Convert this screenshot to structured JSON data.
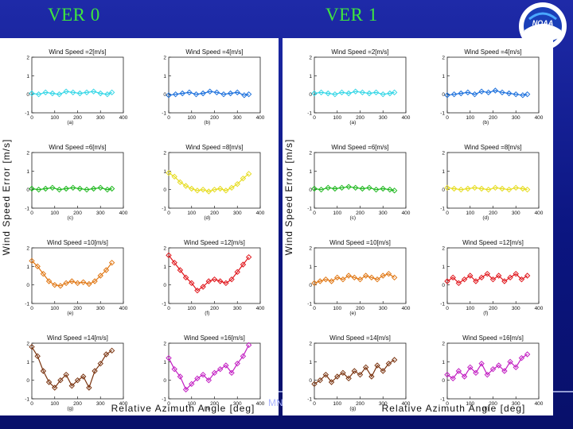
{
  "slide": {
    "title_left": "VER 0",
    "title_right": "VER 1",
    "logo_text": "NOAA",
    "footer_fragment": "MN"
  },
  "colors": {
    "background": "#0b1580",
    "title": "#3ee63e",
    "series": [
      "#33d6e6",
      "#1a6fdc",
      "#1fb81f",
      "#e6dc1e",
      "#e07612",
      "#e0151b",
      "#7a3410",
      "#c21ec2"
    ]
  },
  "chart_data": [
    {
      "type": "scatter",
      "version": "VER 0",
      "ylabel": "Wind Speed Error [m/s]",
      "xlabel": "Relative Azimuth Angle [deg]",
      "subplots": [
        {
          "title": "Wind Speed =2[m/s]",
          "letter": "(a)",
          "color": "#33d6e6",
          "xlim": [
            0,
            400
          ],
          "ylim": [
            -1,
            2
          ],
          "xticks": [
            "0",
            "100",
            "200",
            "300",
            "400"
          ],
          "yticks": [
            "-1",
            "0",
            "1",
            "2"
          ],
          "x": [
            0,
            30,
            60,
            90,
            120,
            150,
            180,
            210,
            240,
            270,
            300,
            330,
            350
          ],
          "y": [
            0.05,
            0.0,
            0.1,
            0.05,
            0.0,
            0.15,
            0.1,
            0.05,
            0.1,
            0.15,
            0.05,
            0.0,
            0.1
          ]
        },
        {
          "title": "Wind Speed =4[m/s]",
          "letter": "(b)",
          "color": "#1a6fdc",
          "xlim": [
            0,
            400
          ],
          "ylim": [
            -1,
            2
          ],
          "xticks": [
            "0",
            "100",
            "200",
            "300",
            "400"
          ],
          "yticks": [
            "-1",
            "0",
            "1",
            "2"
          ],
          "x": [
            0,
            30,
            60,
            90,
            120,
            150,
            180,
            210,
            240,
            270,
            300,
            330,
            350
          ],
          "y": [
            -0.05,
            0.0,
            0.05,
            0.1,
            0.0,
            0.05,
            0.15,
            0.1,
            0.0,
            0.05,
            0.1,
            -0.05,
            0.0
          ]
        },
        {
          "title": "Wind Speed =6[m/s]",
          "letter": "(c)",
          "color": "#1fb81f",
          "xlim": [
            0,
            400
          ],
          "ylim": [
            -1,
            2
          ],
          "xticks": [
            "0",
            "100",
            "200",
            "300",
            "400"
          ],
          "yticks": [
            "-1",
            "0",
            "1",
            "2"
          ],
          "x": [
            0,
            30,
            60,
            90,
            120,
            150,
            180,
            210,
            240,
            270,
            300,
            330,
            350
          ],
          "y": [
            0.05,
            0.0,
            0.05,
            0.1,
            0.0,
            0.05,
            0.1,
            0.05,
            0.0,
            0.05,
            0.1,
            0.0,
            0.05
          ]
        },
        {
          "title": "Wind Speed =8[m/s]",
          "letter": "(d)",
          "color": "#e6dc1e",
          "xlim": [
            0,
            400
          ],
          "ylim": [
            -1,
            2
          ],
          "xticks": [
            "0",
            "100",
            "200",
            "300",
            "400"
          ],
          "yticks": [
            "-1",
            "0",
            "1",
            "2"
          ],
          "x": [
            0,
            25,
            50,
            75,
            100,
            125,
            150,
            175,
            200,
            225,
            250,
            275,
            300,
            325,
            350
          ],
          "y": [
            0.9,
            0.7,
            0.4,
            0.2,
            0.05,
            -0.05,
            0.0,
            -0.1,
            0.0,
            0.05,
            -0.05,
            0.1,
            0.3,
            0.6,
            0.85
          ]
        },
        {
          "title": "Wind Speed =10[m/s]",
          "letter": "(e)",
          "color": "#e07612",
          "xlim": [
            0,
            400
          ],
          "ylim": [
            -1,
            2
          ],
          "xticks": [
            "0",
            "100",
            "200",
            "300",
            "400"
          ],
          "yticks": [
            "-1",
            "0",
            "1",
            "2"
          ],
          "x": [
            0,
            25,
            50,
            75,
            100,
            125,
            150,
            175,
            200,
            225,
            250,
            275,
            300,
            325,
            350
          ],
          "y": [
            1.3,
            1.0,
            0.6,
            0.2,
            0.0,
            -0.05,
            0.1,
            0.2,
            0.1,
            0.15,
            0.05,
            0.2,
            0.5,
            0.8,
            1.2
          ]
        },
        {
          "title": "Wind Speed =12[m/s]",
          "letter": "(f)",
          "color": "#e0151b",
          "xlim": [
            0,
            400
          ],
          "ylim": [
            -1,
            2
          ],
          "xticks": [
            "0",
            "100",
            "200",
            "300",
            "400"
          ],
          "yticks": [
            "-1",
            "0",
            "1",
            "2"
          ],
          "x": [
            0,
            25,
            50,
            75,
            100,
            125,
            150,
            175,
            200,
            225,
            250,
            275,
            300,
            325,
            350
          ],
          "y": [
            1.6,
            1.2,
            0.8,
            0.4,
            0.1,
            -0.3,
            -0.1,
            0.2,
            0.3,
            0.2,
            0.1,
            0.3,
            0.7,
            1.1,
            1.5
          ]
        },
        {
          "title": "Wind Speed =14[m/s]",
          "letter": "(g)",
          "color": "#7a3410",
          "xlim": [
            0,
            400
          ],
          "ylim": [
            -1,
            2
          ],
          "xticks": [
            "0",
            "100",
            "200",
            "300",
            "400"
          ],
          "yticks": [
            "-1",
            "0",
            "1",
            "2"
          ],
          "x": [
            0,
            25,
            50,
            75,
            100,
            125,
            150,
            175,
            200,
            225,
            250,
            275,
            300,
            325,
            350
          ],
          "y": [
            1.8,
            1.3,
            0.5,
            -0.1,
            -0.4,
            0.0,
            0.3,
            -0.3,
            0.0,
            0.2,
            -0.4,
            0.5,
            0.9,
            1.4,
            1.6
          ]
        },
        {
          "title": "Wind Speed =16[m/s]",
          "letter": "(h)",
          "color": "#c21ec2",
          "xlim": [
            0,
            400
          ],
          "ylim": [
            -1,
            2
          ],
          "xticks": [
            "0",
            "100",
            "200",
            "300",
            "400"
          ],
          "yticks": [
            "-1",
            "0",
            "1",
            "2"
          ],
          "x": [
            0,
            25,
            50,
            75,
            100,
            125,
            150,
            175,
            200,
            225,
            250,
            275,
            300,
            325,
            350
          ],
          "y": [
            1.2,
            0.6,
            0.2,
            -0.5,
            -0.2,
            0.1,
            0.3,
            0.0,
            0.4,
            0.6,
            0.8,
            0.4,
            0.9,
            1.3,
            1.9
          ]
        }
      ]
    },
    {
      "type": "scatter",
      "version": "VER 1",
      "ylabel": "Wind Speed Error [m/s]",
      "xlabel": "Relative Azimuth Angle [deg]",
      "subplots": [
        {
          "title": "Wind Speed =2[m/s]",
          "letter": "(a)",
          "color": "#33d6e6",
          "xlim": [
            0,
            400
          ],
          "ylim": [
            -1,
            2
          ],
          "xticks": [
            "0",
            "100",
            "200",
            "300",
            "400"
          ],
          "yticks": [
            "-1",
            "0",
            "1",
            "2"
          ],
          "x": [
            0,
            30,
            60,
            90,
            120,
            150,
            180,
            210,
            240,
            270,
            300,
            330,
            350
          ],
          "y": [
            0.05,
            0.1,
            0.05,
            0.0,
            0.1,
            0.05,
            0.15,
            0.1,
            0.05,
            0.1,
            0.0,
            0.05,
            0.1
          ]
        },
        {
          "title": "Wind Speed =4[m/s]",
          "letter": "(b)",
          "color": "#1a6fdc",
          "xlim": [
            0,
            400
          ],
          "ylim": [
            -1,
            2
          ],
          "xticks": [
            "0",
            "100",
            "200",
            "300",
            "400"
          ],
          "yticks": [
            "-1",
            "0",
            "1",
            "2"
          ],
          "x": [
            0,
            30,
            60,
            90,
            120,
            150,
            180,
            210,
            240,
            270,
            300,
            330,
            350
          ],
          "y": [
            -0.05,
            0.0,
            0.05,
            0.1,
            0.0,
            0.15,
            0.1,
            0.2,
            0.1,
            0.05,
            0.0,
            -0.05,
            0.0
          ]
        },
        {
          "title": "Wind Speed =6[m/s]",
          "letter": "(c)",
          "color": "#1fb81f",
          "xlim": [
            0,
            400
          ],
          "ylim": [
            -1,
            2
          ],
          "xticks": [
            "0",
            "100",
            "200",
            "300",
            "400"
          ],
          "yticks": [
            "-1",
            "0",
            "1",
            "2"
          ],
          "x": [
            0,
            30,
            60,
            90,
            120,
            150,
            180,
            210,
            240,
            270,
            300,
            330,
            350
          ],
          "y": [
            0.05,
            0.0,
            0.1,
            0.05,
            0.1,
            0.15,
            0.1,
            0.05,
            0.1,
            0.0,
            0.05,
            0.0,
            -0.05
          ]
        },
        {
          "title": "Wind Speed =8[m/s]",
          "letter": "(d)",
          "color": "#e6dc1e",
          "xlim": [
            0,
            400
          ],
          "ylim": [
            -1,
            2
          ],
          "xticks": [
            "0",
            "100",
            "200",
            "300",
            "400"
          ],
          "yticks": [
            "-1",
            "0",
            "1",
            "2"
          ],
          "x": [
            0,
            30,
            60,
            90,
            120,
            150,
            180,
            210,
            240,
            270,
            300,
            330,
            350
          ],
          "y": [
            0.1,
            0.05,
            0.0,
            0.05,
            0.1,
            0.05,
            0.0,
            0.1,
            0.05,
            0.0,
            0.1,
            0.05,
            0.0
          ]
        },
        {
          "title": "Wind Speed =10[m/s]",
          "letter": "(e)",
          "color": "#e07612",
          "xlim": [
            0,
            400
          ],
          "ylim": [
            -1,
            2
          ],
          "xticks": [
            "0",
            "100",
            "200",
            "300",
            "400"
          ],
          "yticks": [
            "-1",
            "0",
            "1",
            "2"
          ],
          "x": [
            0,
            25,
            50,
            75,
            100,
            125,
            150,
            175,
            200,
            225,
            250,
            275,
            300,
            325,
            350
          ],
          "y": [
            0.1,
            0.2,
            0.3,
            0.2,
            0.4,
            0.3,
            0.5,
            0.4,
            0.3,
            0.5,
            0.4,
            0.3,
            0.5,
            0.6,
            0.4
          ]
        },
        {
          "title": "Wind Speed =12[m/s]",
          "letter": "(f)",
          "color": "#e0151b",
          "xlim": [
            0,
            400
          ],
          "ylim": [
            -1,
            2
          ],
          "xticks": [
            "0",
            "100",
            "200",
            "300",
            "400"
          ],
          "yticks": [
            "-1",
            "0",
            "1",
            "2"
          ],
          "x": [
            0,
            25,
            50,
            75,
            100,
            125,
            150,
            175,
            200,
            225,
            250,
            275,
            300,
            325,
            350
          ],
          "y": [
            0.2,
            0.4,
            0.1,
            0.3,
            0.5,
            0.2,
            0.4,
            0.6,
            0.3,
            0.5,
            0.2,
            0.4,
            0.6,
            0.3,
            0.5
          ]
        },
        {
          "title": "Wind Speed =14[m/s]",
          "letter": "(g)",
          "color": "#7a3410",
          "xlim": [
            0,
            400
          ],
          "ylim": [
            -1,
            2
          ],
          "xticks": [
            "0",
            "100",
            "200",
            "300",
            "400"
          ],
          "yticks": [
            "-1",
            "0",
            "1",
            "2"
          ],
          "x": [
            0,
            25,
            50,
            75,
            100,
            125,
            150,
            175,
            200,
            225,
            250,
            275,
            300,
            325,
            350
          ],
          "y": [
            -0.2,
            0.0,
            0.3,
            -0.1,
            0.2,
            0.4,
            0.1,
            0.5,
            0.3,
            0.7,
            0.2,
            0.8,
            0.5,
            0.9,
            1.1
          ]
        },
        {
          "title": "Wind Speed =16[m/s]",
          "letter": "(h)",
          "color": "#c21ec2",
          "xlim": [
            0,
            400
          ],
          "ylim": [
            -1,
            2
          ],
          "xticks": [
            "0",
            "100",
            "200",
            "300",
            "400"
          ],
          "yticks": [
            "-1",
            "0",
            "1",
            "2"
          ],
          "x": [
            0,
            25,
            50,
            75,
            100,
            125,
            150,
            175,
            200,
            225,
            250,
            275,
            300,
            325,
            350
          ],
          "y": [
            0.3,
            0.1,
            0.5,
            0.2,
            0.7,
            0.4,
            0.9,
            0.3,
            0.6,
            0.8,
            0.5,
            1.0,
            0.7,
            1.2,
            1.4
          ]
        }
      ]
    }
  ]
}
